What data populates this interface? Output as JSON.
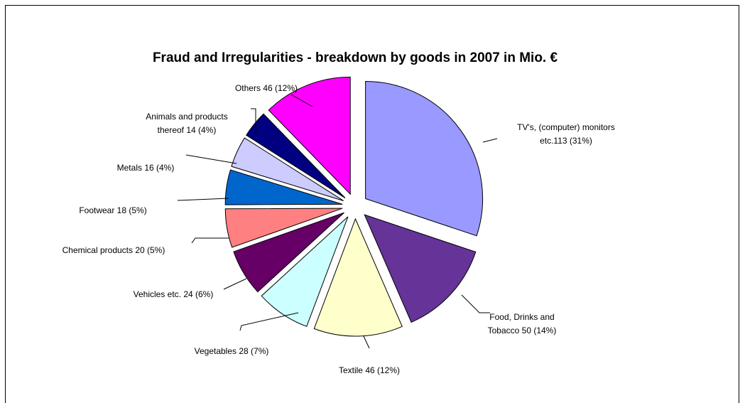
{
  "chart_data": {
    "type": "pie",
    "title": "Fraud and Irregularities - breakdown by goods in 2007 in Mio. €",
    "slices": [
      {
        "name": "TV's, (computer) monitors etc.",
        "value": 113,
        "percent": 31,
        "label_lines": [
          "TV's, (computer) monitors",
          "etc.113 (31%)"
        ],
        "color": "#9999FF"
      },
      {
        "name": "Food, Drinks and Tobacco",
        "value": 50,
        "percent": 14,
        "label_lines": [
          "Food, Drinks and",
          "Tobacco 50 (14%)"
        ],
        "color": "#663399"
      },
      {
        "name": "Textile",
        "value": 46,
        "percent": 12,
        "label_lines": [
          "Textile 46 (12%)"
        ],
        "color": "#FFFFCC"
      },
      {
        "name": "Vegetables",
        "value": 28,
        "percent": 7,
        "label_lines": [
          "Vegetables 28 (7%)"
        ],
        "color": "#CCFFFF"
      },
      {
        "name": "Vehicles etc.",
        "value": 24,
        "percent": 6,
        "label_lines": [
          "Vehicles etc. 24 (6%)"
        ],
        "color": "#660066"
      },
      {
        "name": "Chemical products",
        "value": 20,
        "percent": 5,
        "label_lines": [
          "Chemical products 20 (5%)"
        ],
        "color": "#FF8080"
      },
      {
        "name": "Footwear",
        "value": 18,
        "percent": 5,
        "label_lines": [
          "Footwear 18 (5%)"
        ],
        "color": "#0066CC"
      },
      {
        "name": "Metals",
        "value": 16,
        "percent": 4,
        "label_lines": [
          "Metals 16 (4%)"
        ],
        "color": "#CCCCFF"
      },
      {
        "name": "Animals and products thereof",
        "value": 14,
        "percent": 4,
        "label_lines": [
          "Animals and products",
          "thereof 14 (4%)"
        ],
        "color": "#000080"
      },
      {
        "name": "Others",
        "value": 46,
        "percent": 12,
        "label_lines": [
          "Others 46 (12%)"
        ],
        "color": "#FF00FF"
      }
    ]
  }
}
